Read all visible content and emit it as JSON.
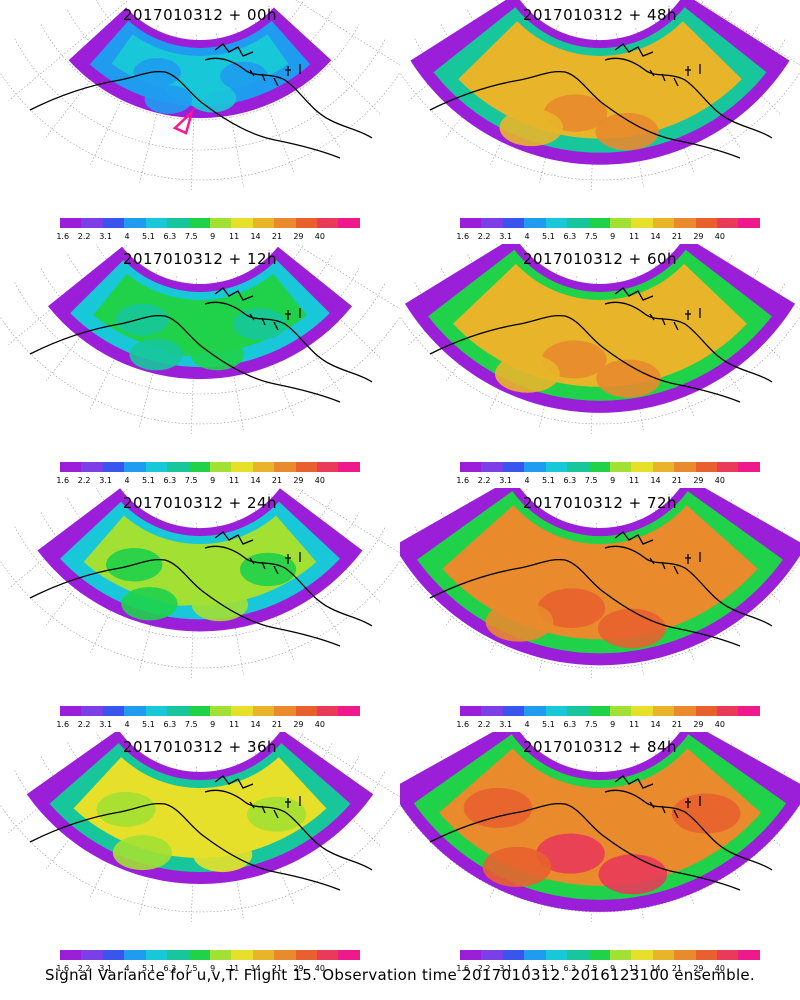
{
  "panels": [
    {
      "title": "2017010312 + 00h",
      "level": 0.15,
      "marker": true
    },
    {
      "title": "2017010312 + 48h",
      "level": 0.7,
      "marker": false
    },
    {
      "title": "2017010312 + 12h",
      "level": 0.35,
      "marker": false
    },
    {
      "title": "2017010312 + 60h",
      "level": 0.75,
      "marker": false
    },
    {
      "title": "2017010312 + 24h",
      "level": 0.45,
      "marker": false
    },
    {
      "title": "2017010312 + 72h",
      "level": 0.85,
      "marker": false
    },
    {
      "title": "2017010312 + 36h",
      "level": 0.55,
      "marker": false
    },
    {
      "title": "2017010312 + 84h",
      "level": 0.88,
      "marker": false
    }
  ],
  "colorbar": {
    "colors": [
      "#9b1fd9",
      "#7b3fe6",
      "#3a55ee",
      "#1f9cf0",
      "#19c8d8",
      "#17c79b",
      "#1fd24a",
      "#a2e033",
      "#e6e02a",
      "#e8b52a",
      "#e98a2d",
      "#e9602f",
      "#ea3a5a",
      "#ee1a8c"
    ],
    "labels": [
      "1.6",
      "2.2",
      "3.1",
      "4",
      "5.1",
      "6.3",
      "7.5",
      "9",
      "11",
      "14",
      "21",
      "29",
      "40"
    ]
  },
  "caption": "Signal Variance for u,v,T. Flight 15. Observation time 2017010312. 2016123100 ensemble."
}
